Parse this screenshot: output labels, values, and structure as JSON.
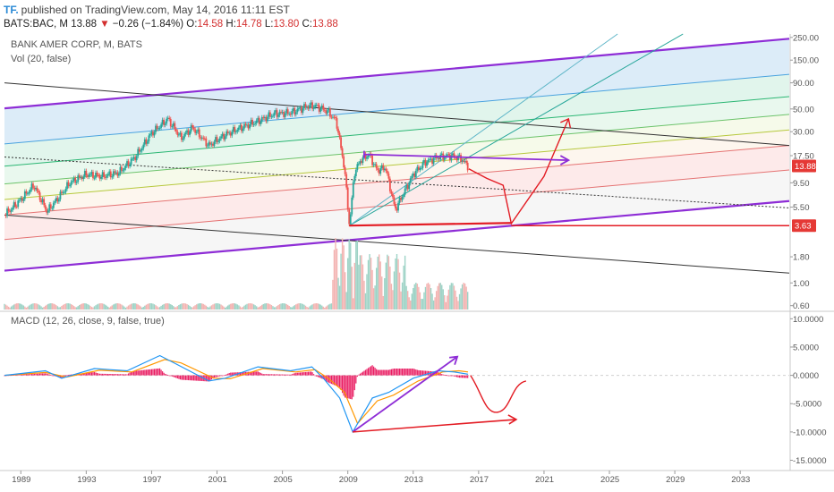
{
  "header": {
    "logo": "TF.",
    "published": "published on TradingView.com, May 14, 2016 11:11 EST",
    "symbol": "BATS:BAC, M",
    "last": "13.88",
    "down_arrow": "▼",
    "change": "−0.26 (−1.84%)",
    "open_label": "O:",
    "open": "14.58",
    "high_label": "H:",
    "high": "14.78",
    "low_label": "L:",
    "low": "13.80",
    "close_label": "C:",
    "close": "13.88"
  },
  "pane_main": {
    "title": "BANK AMER CORP, M, BATS",
    "volume_legend": "Vol (20, false)"
  },
  "pane_macd": {
    "legend": "MACD (12, 26, close, 9, false, true)"
  },
  "colors": {
    "price_up": "#26a69a",
    "price_down": "#ef5350",
    "pitchfork_purple": "#8e2dd6",
    "annotation_red": "#e31b23",
    "macd_line": "#2196f3",
    "signal_line": "#ff9800",
    "histogram": "#e91e63",
    "current_price_tag": "#e53935"
  },
  "chart_data": [
    {
      "type": "candlestick",
      "title": "BANK AMER CORP, M, BATS",
      "scale": "log",
      "y_tick_labels": [
        "250.00",
        "150.00",
        "90.00",
        "50.00",
        "30.00",
        "17.50",
        "13.88",
        "9.50",
        "5.50",
        "3.63",
        "1.80",
        "1.00",
        "0.60"
      ],
      "x_tick_labels": [
        "1989",
        "1993",
        "1997",
        "2001",
        "2005",
        "2009",
        "2013",
        "2017",
        "2021",
        "2025",
        "2029",
        "2033"
      ],
      "ylim": [
        0.55,
        270
      ],
      "last_price": 13.88,
      "marked_level": 3.63,
      "price_path": [
        {
          "x": 1988.0,
          "y": 4.6
        },
        {
          "x": 1989.0,
          "y": 6.5
        },
        {
          "x": 1989.8,
          "y": 9.0
        },
        {
          "x": 1990.6,
          "y": 5.0
        },
        {
          "x": 1991.2,
          "y": 6.5
        },
        {
          "x": 1992.0,
          "y": 9.5
        },
        {
          "x": 1993.0,
          "y": 11.5
        },
        {
          "x": 1994.0,
          "y": 11.0
        },
        {
          "x": 1995.0,
          "y": 12.0
        },
        {
          "x": 1996.0,
          "y": 17.0
        },
        {
          "x": 1997.0,
          "y": 29.0
        },
        {
          "x": 1998.0,
          "y": 40.0
        },
        {
          "x": 1998.8,
          "y": 26.0
        },
        {
          "x": 1999.5,
          "y": 33.0
        },
        {
          "x": 2000.5,
          "y": 22.0
        },
        {
          "x": 2001.5,
          "y": 28.0
        },
        {
          "x": 2002.5,
          "y": 33.0
        },
        {
          "x": 2003.5,
          "y": 38.0
        },
        {
          "x": 2004.5,
          "y": 45.0
        },
        {
          "x": 2005.5,
          "y": 46.0
        },
        {
          "x": 2006.5,
          "y": 53.0
        },
        {
          "x": 2007.0,
          "y": 54.0
        },
        {
          "x": 2007.8,
          "y": 47.0
        },
        {
          "x": 2008.3,
          "y": 38.0
        },
        {
          "x": 2008.8,
          "y": 13.0
        },
        {
          "x": 2009.1,
          "y": 3.6
        },
        {
          "x": 2009.4,
          "y": 12.0
        },
        {
          "x": 2009.8,
          "y": 16.0
        },
        {
          "x": 2010.3,
          "y": 18.0
        },
        {
          "x": 2010.8,
          "y": 12.5
        },
        {
          "x": 2011.3,
          "y": 13.5
        },
        {
          "x": 2011.9,
          "y": 5.2
        },
        {
          "x": 2012.5,
          "y": 8.0
        },
        {
          "x": 2013.0,
          "y": 11.5
        },
        {
          "x": 2013.7,
          "y": 15.0
        },
        {
          "x": 2014.5,
          "y": 17.0
        },
        {
          "x": 2015.3,
          "y": 17.5
        },
        {
          "x": 2015.9,
          "y": 16.5
        },
        {
          "x": 2016.35,
          "y": 13.88
        }
      ],
      "projection_path": [
        {
          "x": 2016.4,
          "y": 13.0
        },
        {
          "x": 2017.5,
          "y": 10.5
        },
        {
          "x": 2018.5,
          "y": 9.0
        },
        {
          "x": 2019.0,
          "y": 3.8
        },
        {
          "x": 2021.0,
          "y": 11.0
        },
        {
          "x": 2022.5,
          "y": 40.0
        }
      ],
      "volume": "monthly volume bars, peaking around 2009–2011"
    },
    {
      "type": "line",
      "legend": "MACD (12, 26, close, 9, false, true)",
      "y_tick_labels": [
        "10.0000",
        "5.0000",
        "0.0000",
        "-5.0000",
        "-10.0000",
        "-15.0000"
      ],
      "ylim": [
        -16.5,
        11
      ],
      "series": [
        {
          "values": [
            {
              "x": 1988.0,
              "y": 0.0
            },
            {
              "x": 1990.5,
              "y": 0.8
            },
            {
              "x": 1991.5,
              "y": -0.5
            },
            {
              "x": 1993.5,
              "y": 1.2
            },
            {
              "x": 1995.5,
              "y": 0.8
            },
            {
              "x": 1997.5,
              "y": 3.5
            },
            {
              "x": 1998.5,
              "y": 2.0
            },
            {
              "x": 2000.5,
              "y": -1.0
            },
            {
              "x": 2001.5,
              "y": -0.5
            },
            {
              "x": 2003.5,
              "y": 1.5
            },
            {
              "x": 2005.5,
              "y": 0.8
            },
            {
              "x": 2006.8,
              "y": 1.5
            },
            {
              "x": 2007.5,
              "y": -0.5
            },
            {
              "x": 2008.5,
              "y": -4.0
            },
            {
              "x": 2009.3,
              "y": -10.0
            },
            {
              "x": 2010.5,
              "y": -4.0
            },
            {
              "x": 2011.5,
              "y": -3.0
            },
            {
              "x": 2013.0,
              "y": -0.5
            },
            {
              "x": 2014.5,
              "y": 0.8
            },
            {
              "x": 2015.5,
              "y": 0.6
            },
            {
              "x": 2016.35,
              "y": 0.2
            }
          ]
        },
        {
          "values": [
            {
              "x": 1988.0,
              "y": 0.0
            },
            {
              "x": 1990.5,
              "y": 0.5
            },
            {
              "x": 1991.8,
              "y": -0.3
            },
            {
              "x": 1993.8,
              "y": 0.9
            },
            {
              "x": 1995.8,
              "y": 0.6
            },
            {
              "x": 1997.8,
              "y": 2.8
            },
            {
              "x": 1998.8,
              "y": 2.2
            },
            {
              "x": 2000.8,
              "y": -0.5
            },
            {
              "x": 2001.8,
              "y": -0.6
            },
            {
              "x": 2003.8,
              "y": 1.2
            },
            {
              "x": 2005.8,
              "y": 0.6
            },
            {
              "x": 2007.0,
              "y": 1.0
            },
            {
              "x": 2007.8,
              "y": -0.5
            },
            {
              "x": 2008.8,
              "y": -3.0
            },
            {
              "x": 2009.6,
              "y": -8.5
            },
            {
              "x": 2010.8,
              "y": -4.5
            },
            {
              "x": 2011.8,
              "y": -3.5
            },
            {
              "x": 2013.3,
              "y": -1.0
            },
            {
              "x": 2014.8,
              "y": 0.6
            },
            {
              "x": 2015.8,
              "y": 0.8
            },
            {
              "x": 2016.35,
              "y": 0.6
            }
          ]
        }
      ]
    }
  ]
}
